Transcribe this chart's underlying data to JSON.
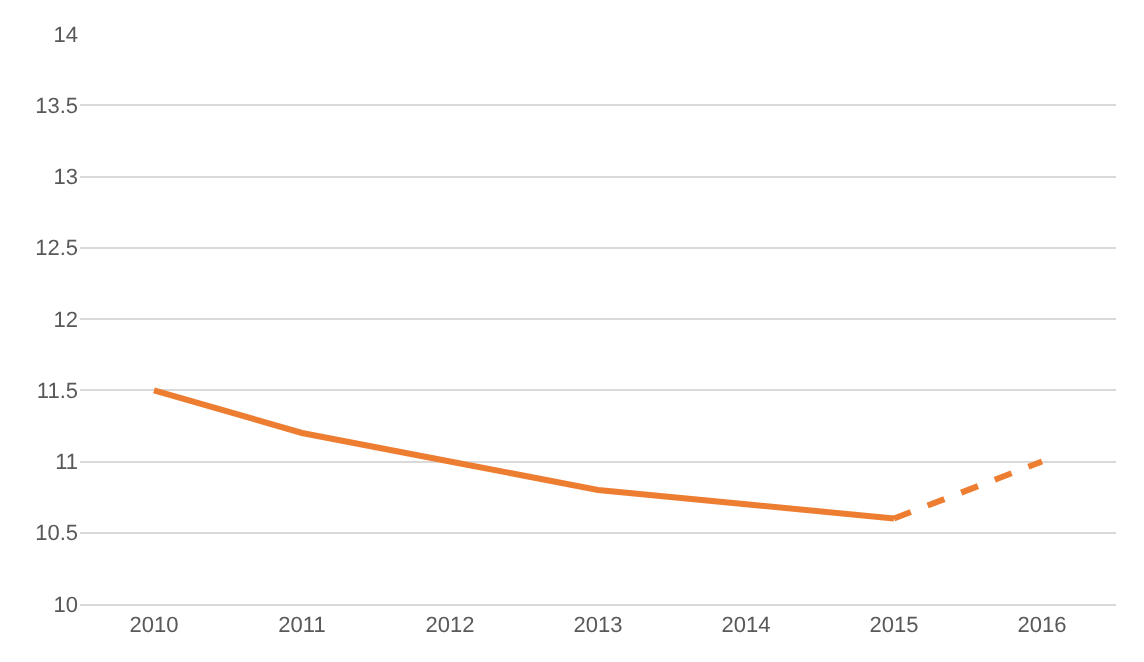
{
  "chart_data": {
    "type": "line",
    "categories": [
      "2010",
      "2011",
      "2012",
      "2013",
      "2014",
      "2015",
      "2016"
    ],
    "series": [
      {
        "color": "#ed7d31",
        "line_style": "solid",
        "values": [
          11.5,
          11.2,
          11.0,
          10.8,
          10.7,
          10.6,
          null
        ]
      },
      {
        "color": "#ed7d31",
        "line_style": "dashed",
        "values": [
          null,
          null,
          null,
          null,
          null,
          10.6,
          11.0
        ]
      }
    ],
    "ylim": [
      10,
      14
    ],
    "yticks": [
      10,
      10.5,
      11,
      11.5,
      12,
      12.5,
      13,
      13.5,
      14
    ],
    "grid": "y",
    "marker": "none"
  }
}
